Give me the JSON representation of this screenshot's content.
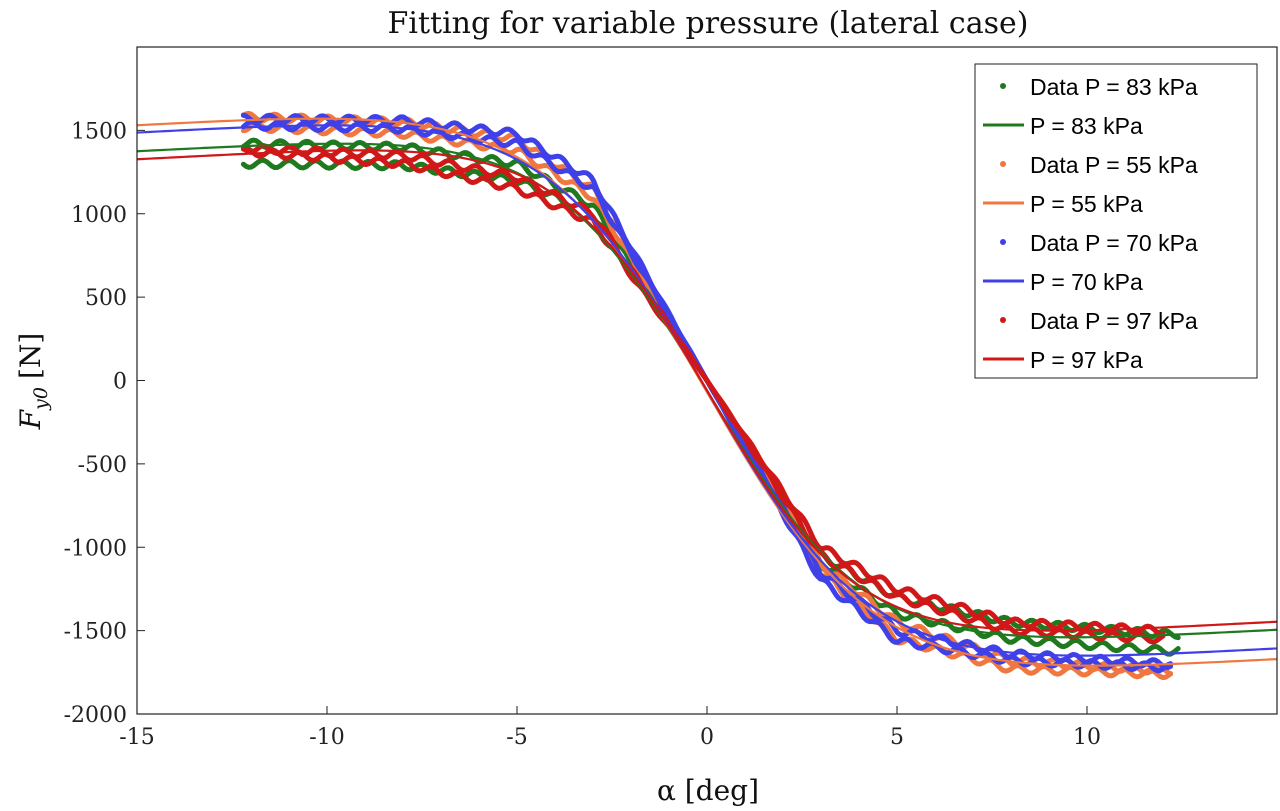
{
  "chart_data": {
    "type": "line",
    "title": "Fitting for variable pressure (lateral case)",
    "xlabel": "α [deg]",
    "ylabel": {
      "main": "F",
      "sub": "y0",
      "unit": "[N]"
    },
    "xlim": [
      -15,
      15
    ],
    "ylim": [
      -2000,
      2000
    ],
    "xticks": [
      -15,
      -10,
      -5,
      0,
      5,
      10
    ],
    "yticks": [
      1500,
      1000,
      500,
      0,
      -500,
      -1000,
      -1500,
      -2000
    ],
    "grid": false,
    "legend_position": "top-right",
    "series": [
      {
        "name": "P = 83 kPa",
        "data_label": "Data P = 83 kPa",
        "color": "#1f7a1f",
        "fit": {
          "D": 1480,
          "C": 1.45,
          "B": 0.175,
          "E": -0.3,
          "shift": -60
        },
        "data_x_range": [
          -12.2,
          12.4
        ],
        "data_bands": [
          {
            "x": [
              -12,
              -8,
              -5,
              -3,
              0,
              3,
              5,
              8,
              12
            ],
            "y": [
              1300,
              1290,
              1200,
              1000,
              0,
              -1050,
              -1300,
              -1450,
              -1520
            ]
          },
          {
            "x": [
              -12,
              -8,
              -5,
              -3,
              0,
              3,
              5,
              8,
              12
            ],
            "y": [
              1420,
              1400,
              1300,
              1050,
              0,
              -1100,
              -1400,
              -1550,
              -1620
            ]
          }
        ]
      },
      {
        "name": "P = 55 kPa",
        "data_label": "Data P = 55 kPa",
        "color": "#f07840",
        "fit": {
          "D": 1640,
          "C": 1.45,
          "B": 0.165,
          "E": -0.3,
          "shift": -70
        },
        "data_x_range": [
          -12.2,
          12.2
        ],
        "data_bands": [
          {
            "x": [
              -12,
              -8,
              -5,
              -3,
              0,
              3,
              5,
              8,
              12
            ],
            "y": [
              1520,
              1480,
              1380,
              1100,
              0,
              -1100,
              -1450,
              -1680,
              -1740
            ]
          },
          {
            "x": [
              -12,
              -8,
              -5,
              -3,
              0,
              3,
              5,
              8,
              12
            ],
            "y": [
              1580,
              1550,
              1450,
              1150,
              0,
              -1150,
              -1550,
              -1730,
              -1760
            ]
          }
        ]
      },
      {
        "name": "P = 70 kPa",
        "data_label": "Data P = 70 kPa",
        "color": "#4040e8",
        "fit": {
          "D": 1590,
          "C": 1.45,
          "B": 0.17,
          "E": -0.3,
          "shift": -60
        },
        "data_x_range": [
          -12.2,
          12.2
        ],
        "data_bands": [
          {
            "x": [
              -12,
              -8,
              -5,
              -3,
              0,
              3,
              5,
              8,
              12
            ],
            "y": [
              1530,
              1510,
              1420,
              1150,
              0,
              -1150,
              -1500,
              -1640,
              -1700
            ]
          },
          {
            "x": [
              -12,
              -8,
              -5,
              -3,
              0,
              3,
              5,
              8,
              12
            ],
            "y": [
              1570,
              1560,
              1480,
              1200,
              0,
              -1200,
              -1560,
              -1680,
              -1720
            ]
          }
        ]
      },
      {
        "name": "P = 97 kPa",
        "data_label": "Data P = 97 kPa",
        "color": "#d01818",
        "fit": {
          "D": 1440,
          "C": 1.45,
          "B": 0.185,
          "E": -0.3,
          "shift": -60
        },
        "data_x_range": [
          -12.2,
          12.0
        ],
        "data_bands": [
          {
            "x": [
              -12,
              -8,
              -5,
              -3,
              0,
              3,
              5,
              8,
              12
            ],
            "y": [
              1370,
              1300,
              1150,
              950,
              0,
              -1000,
              -1250,
              -1450,
              -1500
            ]
          },
          {
            "x": [
              -12,
              -8,
              -5,
              -3,
              0,
              3,
              5,
              8,
              12
            ],
            "y": [
              1390,
              1350,
              1220,
              1000,
              0,
              -1050,
              -1300,
              -1500,
              -1550
            ]
          }
        ]
      }
    ]
  }
}
